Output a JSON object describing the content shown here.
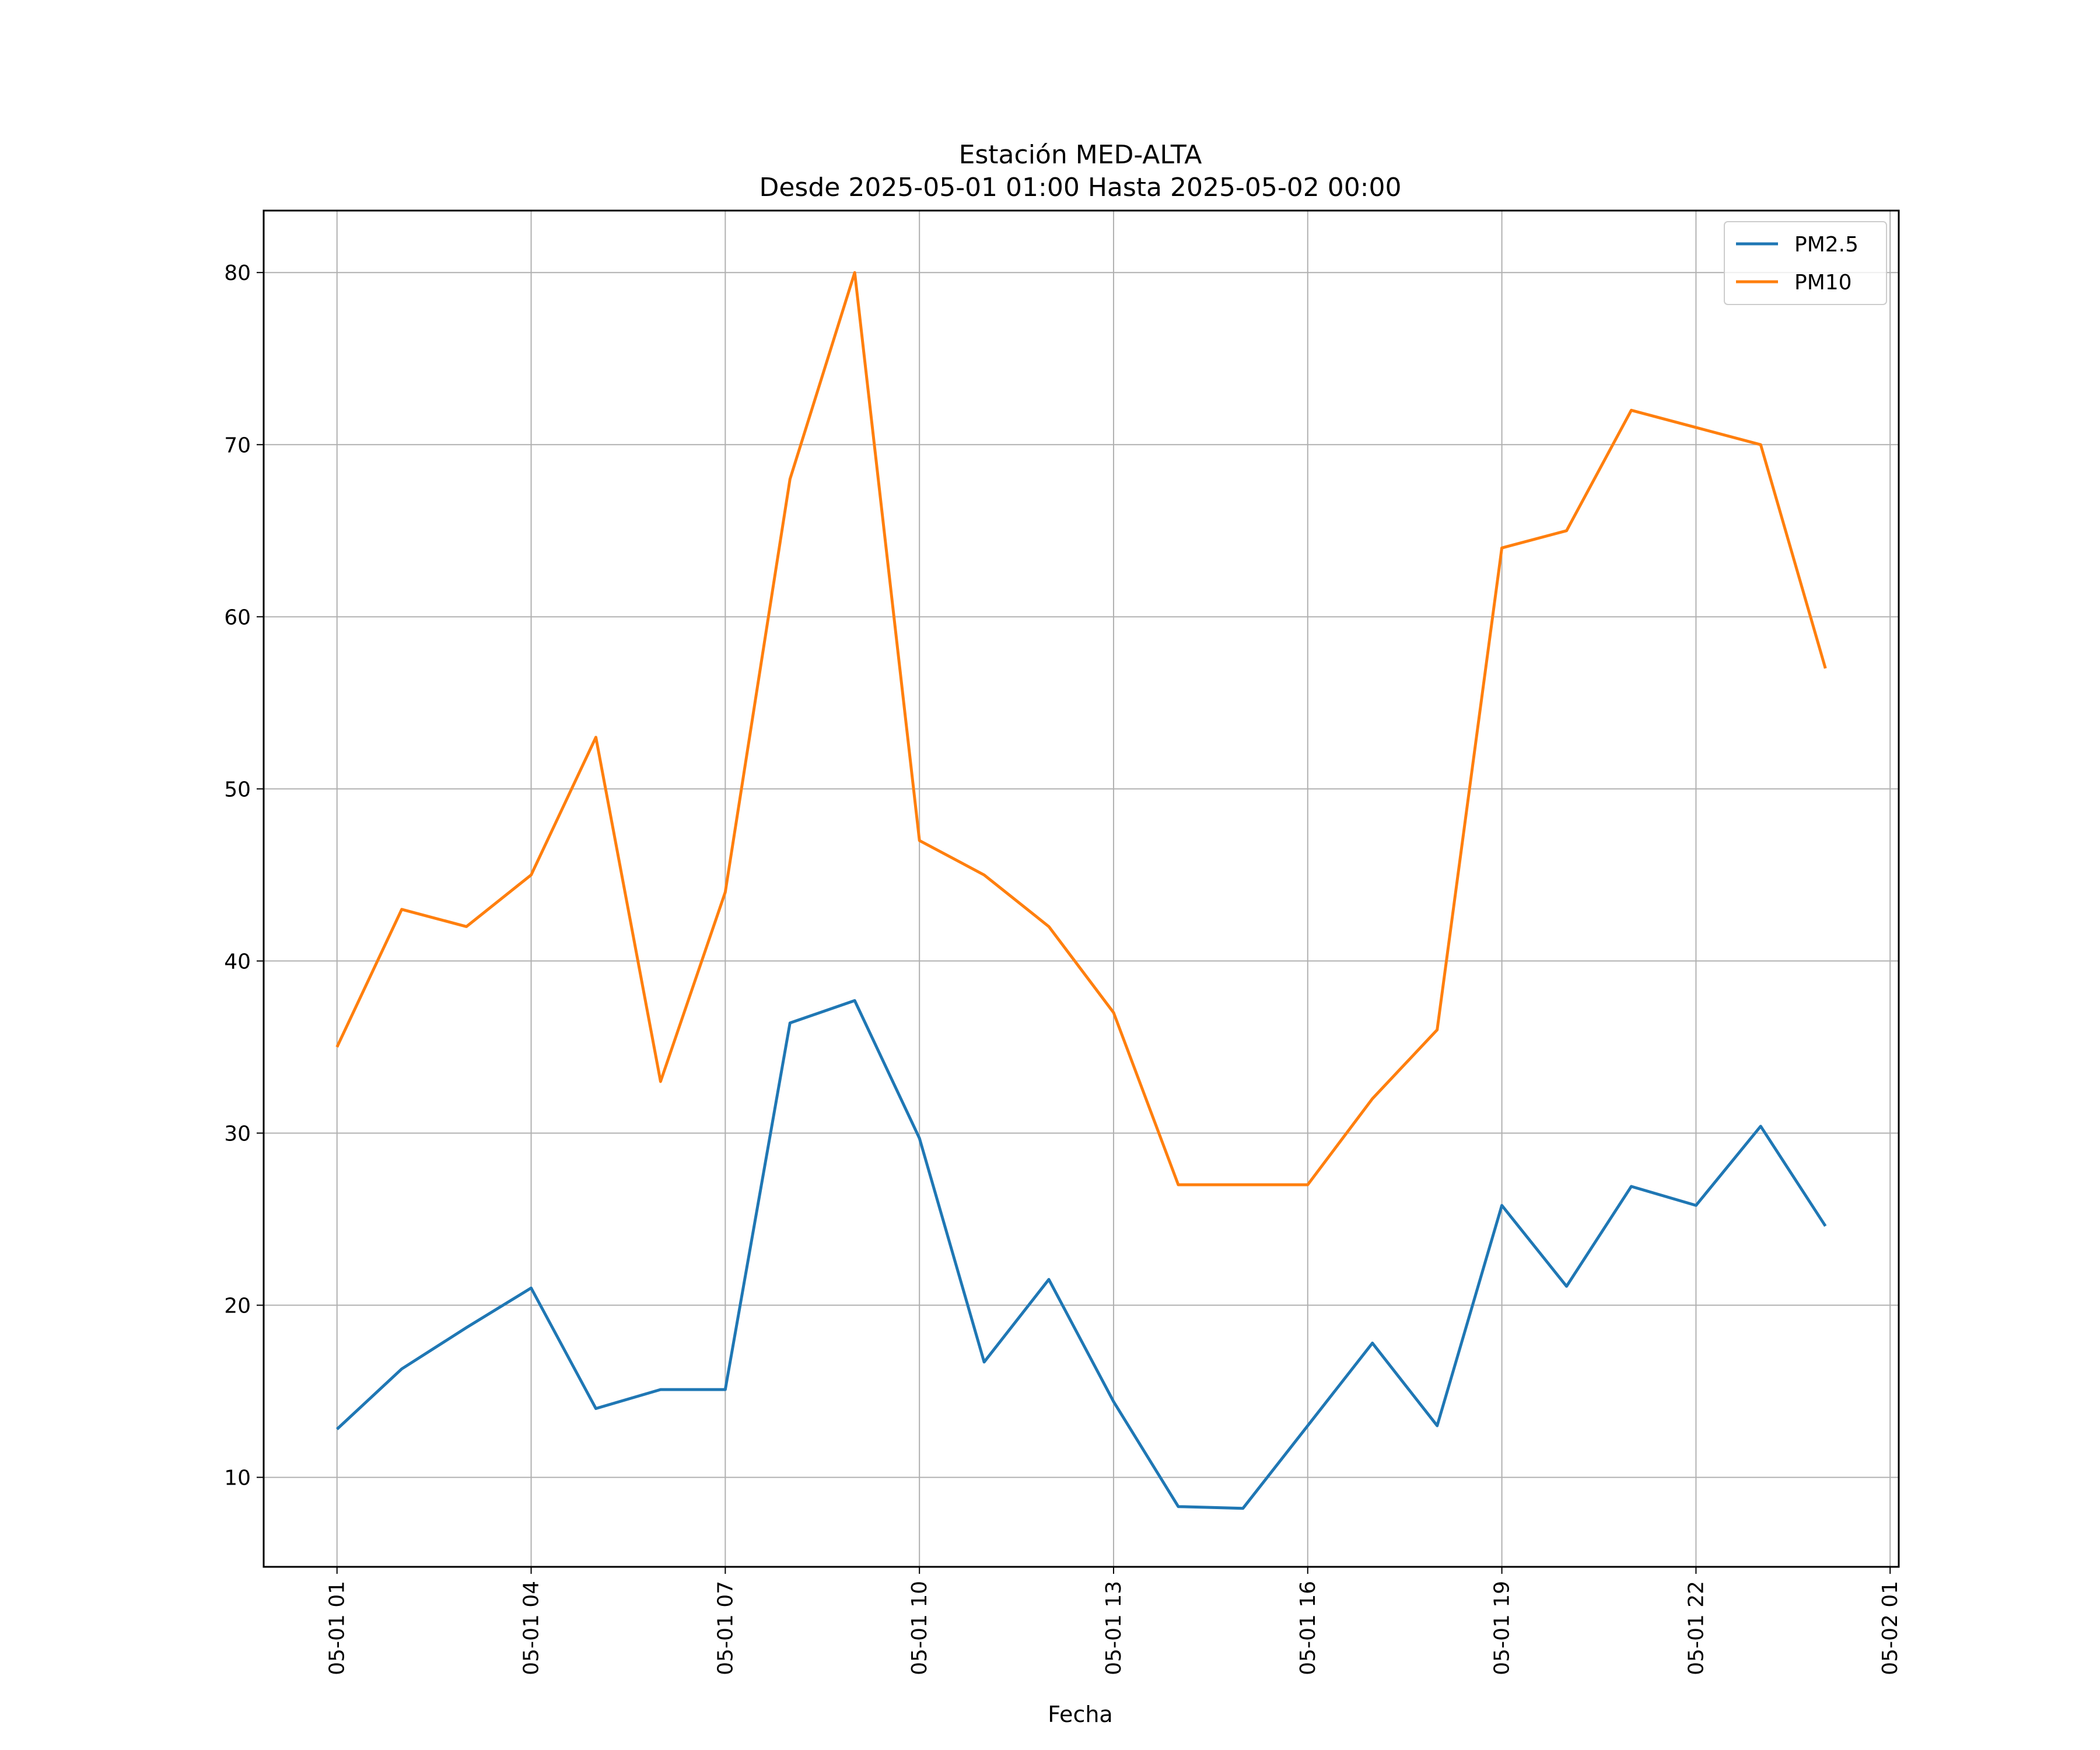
{
  "chart_data": {
    "type": "line",
    "title": "Estación MED-ALTA",
    "subtitle": "Desde 2025-05-01 01:00 Hasta 2025-05-02 00:00",
    "xlabel": "Fecha",
    "ylabel": "",
    "x": [
      "2025-05-01 01:00",
      "2025-05-01 02:00",
      "2025-05-01 03:00",
      "2025-05-01 04:00",
      "2025-05-01 05:00",
      "2025-05-01 06:00",
      "2025-05-01 07:00",
      "2025-05-01 08:00",
      "2025-05-01 09:00",
      "2025-05-01 10:00",
      "2025-05-01 11:00",
      "2025-05-01 12:00",
      "2025-05-01 13:00",
      "2025-05-01 14:00",
      "2025-05-01 15:00",
      "2025-05-01 16:00",
      "2025-05-01 17:00",
      "2025-05-01 18:00",
      "2025-05-01 19:00",
      "2025-05-01 20:00",
      "2025-05-01 21:00",
      "2025-05-01 22:00",
      "2025-05-01 23:00",
      "2025-05-02 00:00"
    ],
    "xlim": [
      "2025-04-30 23:52",
      "2025-05-02 01:08"
    ],
    "xticks": [
      {
        "t": "2025-05-01 01:00",
        "label": "05-01 01"
      },
      {
        "t": "2025-05-01 04:00",
        "label": "05-01 04"
      },
      {
        "t": "2025-05-01 07:00",
        "label": "05-01 07"
      },
      {
        "t": "2025-05-01 10:00",
        "label": "05-01 10"
      },
      {
        "t": "2025-05-01 13:00",
        "label": "05-01 13"
      },
      {
        "t": "2025-05-01 16:00",
        "label": "05-01 16"
      },
      {
        "t": "2025-05-01 19:00",
        "label": "05-01 19"
      },
      {
        "t": "2025-05-01 22:00",
        "label": "05-01 22"
      },
      {
        "t": "2025-05-02 01:00",
        "label": "05-02 01"
      }
    ],
    "ylim": [
      4.8,
      83.6
    ],
    "yticks": [
      10,
      20,
      30,
      40,
      50,
      60,
      70,
      80
    ],
    "grid": true,
    "legend_position": "top-right",
    "series": [
      {
        "name": "PM2.5",
        "color": "#1f77b4",
        "values": [
          12.8,
          16.3,
          18.7,
          21.0,
          14.0,
          15.1,
          15.1,
          36.4,
          37.7,
          29.7,
          16.7,
          21.5,
          14.4,
          8.3,
          8.2,
          13.0,
          17.8,
          13.0,
          25.8,
          21.1,
          26.9,
          25.8,
          30.4,
          24.6
        ]
      },
      {
        "name": "PM10",
        "color": "#ff7f0e",
        "values": [
          35,
          43,
          42,
          45,
          53,
          33,
          44,
          68,
          80,
          47,
          45,
          42,
          37,
          27,
          27,
          27,
          32,
          36,
          64,
          65,
          72,
          71,
          70,
          57
        ]
      }
    ]
  }
}
